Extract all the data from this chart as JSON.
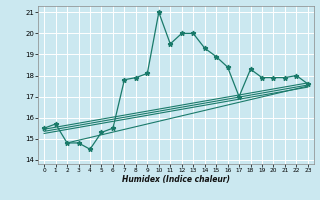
{
  "xlabel": "Humidex (Indice chaleur)",
  "bg_color": "#cbe8f0",
  "grid_color": "#ffffff",
  "line_color": "#1a7a6a",
  "xlim": [
    -0.5,
    23.5
  ],
  "ylim": [
    13.8,
    21.3
  ],
  "xticks": [
    0,
    1,
    2,
    3,
    4,
    5,
    6,
    7,
    8,
    9,
    10,
    11,
    12,
    13,
    14,
    15,
    16,
    17,
    18,
    19,
    20,
    21,
    22,
    23
  ],
  "yticks": [
    14,
    15,
    16,
    17,
    18,
    19,
    20,
    21
  ],
  "main_x": [
    0,
    1,
    2,
    3,
    4,
    5,
    6,
    7,
    8,
    9,
    10,
    11,
    12,
    13,
    14,
    15,
    16,
    17,
    18,
    19,
    20,
    21,
    22,
    23
  ],
  "main_y": [
    15.5,
    15.7,
    14.8,
    14.8,
    14.5,
    15.3,
    15.5,
    17.8,
    17.9,
    18.1,
    21.0,
    19.5,
    20.0,
    20.0,
    19.3,
    18.9,
    18.4,
    17.0,
    18.3,
    17.9,
    17.9,
    17.9,
    18.0,
    17.6
  ],
  "trend_lines": [
    {
      "x": [
        0,
        23
      ],
      "y": [
        15.45,
        17.65
      ]
    },
    {
      "x": [
        0,
        23
      ],
      "y": [
        15.35,
        17.55
      ]
    },
    {
      "x": [
        0,
        23
      ],
      "y": [
        15.25,
        17.45
      ]
    },
    {
      "x": [
        2,
        23
      ],
      "y": [
        14.8,
        17.5
      ]
    }
  ]
}
